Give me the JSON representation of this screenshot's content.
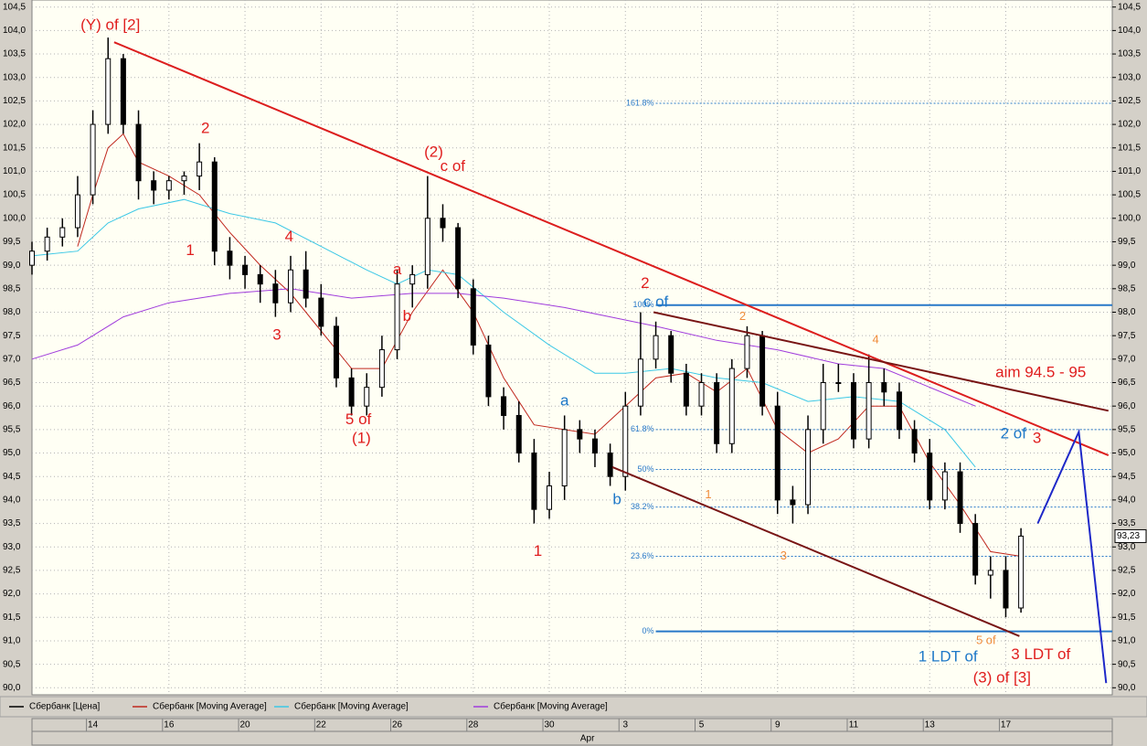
{
  "chart_data": {
    "type": "candlestick",
    "xlim": [
      0,
      142
    ],
    "ylim": [
      89.85,
      104.65
    ],
    "grid": true,
    "yticks": [
      {
        "value": 90,
        "label": "90,0"
      },
      {
        "value": 90.5,
        "label": "90,5"
      },
      {
        "value": 91,
        "label": "91,0"
      },
      {
        "value": 91.5,
        "label": "91,5"
      },
      {
        "value": 92,
        "label": "92,0"
      },
      {
        "value": 92.5,
        "label": "92,5"
      },
      {
        "value": 93,
        "label": "93,0"
      },
      {
        "value": 93.5,
        "label": "93,5"
      },
      {
        "value": 94,
        "label": "94,0"
      },
      {
        "value": 94.5,
        "label": "94,5"
      },
      {
        "value": 95,
        "label": "95,0"
      },
      {
        "value": 95.5,
        "label": "95,5"
      },
      {
        "value": 96,
        "label": "96,0"
      },
      {
        "value": 96.5,
        "label": "96,5"
      },
      {
        "value": 97,
        "label": "97,0"
      },
      {
        "value": 97.5,
        "label": "97,5"
      },
      {
        "value": 98,
        "label": "98,0"
      },
      {
        "value": 98.5,
        "label": "98,5"
      },
      {
        "value": 99,
        "label": "99,0"
      },
      {
        "value": 99.5,
        "label": "99,5"
      },
      {
        "value": 100,
        "label": "100,0"
      },
      {
        "value": 100.5,
        "label": "100,5"
      },
      {
        "value": 101,
        "label": "101,0"
      },
      {
        "value": 101.5,
        "label": "101,5"
      },
      {
        "value": 102,
        "label": "102,0"
      },
      {
        "value": 102.5,
        "label": "102,5"
      },
      {
        "value": 103,
        "label": "103,0"
      },
      {
        "value": 103.5,
        "label": "103,5"
      },
      {
        "value": 104,
        "label": "104,0"
      },
      {
        "value": 104.5,
        "label": "104,5"
      }
    ],
    "xticks": [
      {
        "value": 8,
        "label": "14"
      },
      {
        "value": 18,
        "label": "16"
      },
      {
        "value": 28,
        "label": "20"
      },
      {
        "value": 38,
        "label": "22"
      },
      {
        "value": 48,
        "label": "26"
      },
      {
        "value": 58,
        "label": "28"
      },
      {
        "value": 68,
        "label": "30"
      },
      {
        "value": 78,
        "label": "3"
      },
      {
        "value": 88,
        "label": "5"
      },
      {
        "value": 98,
        "label": "9"
      },
      {
        "value": 108,
        "label": "11"
      },
      {
        "value": 118,
        "label": "13"
      },
      {
        "value": 128,
        "label": "17"
      }
    ],
    "month_label": {
      "value": 73,
      "label": "Apr"
    },
    "last_price": {
      "value": 93.23,
      "label": "93,23"
    },
    "price": {
      "name": "Сбербанк [Цена]",
      "color": "#000000",
      "x": [
        0,
        2,
        4,
        6,
        8,
        10,
        12,
        14,
        16,
        18,
        20,
        22,
        24,
        26,
        28,
        30,
        32,
        34,
        36,
        38,
        40,
        42,
        44,
        46,
        48,
        50,
        52,
        54,
        56,
        58,
        60,
        62,
        64,
        66,
        68,
        70,
        72,
        74,
        76,
        78,
        80,
        82,
        84,
        86,
        88,
        90,
        92,
        94,
        96,
        98,
        100,
        102,
        104,
        106,
        108,
        110,
        112,
        114,
        116,
        118,
        120,
        122,
        124,
        126,
        128,
        130
      ],
      "open": [
        99.0,
        99.3,
        99.6,
        99.8,
        100.5,
        102.0,
        103.4,
        102.0,
        100.8,
        100.6,
        100.8,
        100.9,
        101.2,
        99.3,
        99.0,
        98.8,
        98.6,
        98.2,
        98.9,
        98.3,
        97.7,
        96.6,
        96.0,
        96.4,
        97.2,
        98.6,
        98.8,
        100.0,
        99.8,
        98.5,
        97.3,
        96.2,
        95.8,
        95.0,
        93.8,
        94.3,
        95.5,
        95.3,
        95.0,
        94.5,
        96.0,
        97.0,
        97.5,
        96.7,
        96.0,
        96.5,
        95.2,
        96.8,
        97.5,
        96.0,
        94.0,
        93.9,
        95.5,
        96.5,
        96.5,
        95.3,
        96.5,
        96.3,
        95.5,
        95.0,
        94.0,
        94.6,
        93.5,
        92.4,
        92.5,
        91.7
      ],
      "high": [
        99.5,
        99.8,
        100.0,
        100.9,
        102.3,
        103.85,
        103.5,
        102.3,
        101.0,
        100.9,
        101.0,
        101.6,
        101.3,
        99.6,
        99.2,
        99.0,
        98.9,
        99.2,
        99.3,
        98.6,
        97.9,
        96.8,
        96.7,
        97.5,
        98.9,
        99.0,
        100.9,
        100.3,
        99.9,
        98.7,
        97.5,
        96.4,
        96.1,
        95.3,
        94.6,
        95.8,
        95.7,
        95.5,
        95.2,
        96.3,
        98.0,
        97.8,
        97.6,
        96.9,
        96.7,
        96.7,
        97.0,
        97.7,
        97.6,
        96.3,
        94.3,
        95.8,
        96.9,
        96.9,
        96.7,
        97.1,
        96.8,
        96.5,
        95.7,
        95.3,
        94.8,
        94.8,
        93.7,
        92.8,
        92.8,
        93.4
      ],
      "low": [
        98.8,
        99.1,
        99.4,
        99.6,
        100.3,
        101.8,
        101.8,
        100.4,
        100.3,
        100.4,
        100.5,
        100.6,
        99.0,
        98.7,
        98.5,
        98.2,
        97.9,
        98.0,
        98.1,
        97.5,
        96.4,
        95.8,
        95.8,
        96.2,
        97.0,
        98.1,
        98.5,
        99.5,
        98.3,
        97.1,
        96.0,
        95.5,
        94.8,
        93.5,
        93.6,
        94.0,
        95.0,
        94.7,
        94.3,
        94.2,
        95.8,
        96.8,
        96.5,
        95.8,
        95.8,
        95.0,
        95.0,
        96.6,
        95.8,
        93.7,
        93.5,
        93.7,
        95.2,
        96.3,
        95.1,
        95.1,
        96.0,
        95.3,
        94.8,
        93.8,
        93.8,
        93.3,
        92.2,
        91.9,
        91.5,
        91.6
      ],
      "close": [
        99.3,
        99.6,
        99.8,
        100.5,
        102.0,
        103.4,
        102.0,
        100.8,
        100.6,
        100.8,
        100.9,
        101.2,
        99.3,
        99.0,
        98.8,
        98.6,
        98.2,
        98.9,
        98.3,
        97.7,
        96.6,
        96.0,
        96.4,
        97.2,
        98.6,
        98.8,
        100.0,
        99.8,
        98.5,
        97.3,
        96.2,
        95.8,
        95.0,
        93.8,
        94.3,
        95.5,
        95.3,
        95.0,
        94.5,
        96.0,
        97.0,
        97.5,
        96.7,
        96.0,
        96.5,
        95.2,
        96.8,
        97.5,
        96.0,
        94.0,
        93.9,
        95.5,
        96.5,
        96.5,
        95.3,
        96.5,
        96.3,
        95.5,
        95.0,
        94.0,
        94.6,
        93.5,
        92.4,
        92.5,
        91.7,
        93.23
      ]
    },
    "series": [
      {
        "name": "Сбербанк [Moving Average]",
        "color": "#c0281e",
        "x": [
          6,
          8,
          10,
          12,
          14,
          18,
          22,
          26,
          30,
          34,
          38,
          42,
          46,
          50,
          54,
          58,
          62,
          66,
          70,
          74,
          78,
          82,
          86,
          90,
          94,
          98,
          102,
          106,
          110,
          114,
          118,
          122,
          126,
          130
        ],
        "values": [
          99.4,
          100.5,
          101.5,
          101.8,
          101.2,
          100.9,
          100.5,
          99.7,
          99.0,
          98.4,
          97.6,
          96.8,
          96.8,
          98.0,
          98.9,
          98.0,
          96.6,
          95.6,
          95.5,
          95.4,
          96.0,
          96.6,
          96.7,
          96.3,
          96.8,
          95.5,
          95.0,
          95.3,
          96.0,
          96.0,
          94.8,
          93.9,
          92.9,
          92.8
        ]
      },
      {
        "name": "Сбербанк [Moving Average]",
        "color": "#3cc8e6",
        "x": [
          0,
          6,
          10,
          14,
          20,
          26,
          32,
          38,
          44,
          48,
          52,
          56,
          62,
          68,
          74,
          78,
          84,
          90,
          96,
          102,
          108,
          114,
          120,
          124
        ],
        "values": [
          99.2,
          99.3,
          99.9,
          100.2,
          100.4,
          100.1,
          99.9,
          99.4,
          98.9,
          98.6,
          98.9,
          98.8,
          98.0,
          97.3,
          96.7,
          96.7,
          96.8,
          96.6,
          96.5,
          96.1,
          96.2,
          96.1,
          95.5,
          94.7
        ]
      },
      {
        "name": "Сбербанк [Moving Average]",
        "color": "#a03cdc",
        "x": [
          0,
          6,
          12,
          18,
          26,
          34,
          42,
          50,
          56,
          62,
          70,
          76,
          82,
          90,
          98,
          106,
          112,
          118,
          124
        ],
        "values": [
          97.0,
          97.3,
          97.9,
          98.2,
          98.4,
          98.5,
          98.3,
          98.4,
          98.4,
          98.3,
          98.1,
          97.9,
          97.7,
          97.4,
          97.2,
          96.9,
          96.8,
          96.4,
          96.0
        ]
      }
    ],
    "trendlines": [
      {
        "color": "#dc1e1e",
        "x": [
          10.8,
          141.5
        ],
        "y": [
          103.75,
          94.95
        ]
      },
      {
        "color": "#781414",
        "x": [
          81.7,
          141.5
        ],
        "y": [
          98.0,
          95.9
        ]
      },
      {
        "color": "#781414",
        "x": [
          76.3,
          129.8
        ],
        "y": [
          94.7,
          91.1
        ]
      },
      {
        "color": "#1e28c8",
        "x": [
          132.2,
          137.6,
          141.2
        ],
        "y": [
          93.5,
          95.45,
          90.1
        ]
      }
    ],
    "fib_x": [
      82,
      142
    ],
    "fib_color": "#2878c8",
    "fib_levels": [
      {
        "label": "161.8%",
        "value": 102.45,
        "style": "dashed"
      },
      {
        "label": "100%",
        "value": 98.15,
        "style": "solid"
      },
      {
        "label": "61.8%",
        "value": 95.5,
        "style": "dashed"
      },
      {
        "label": "50%",
        "value": 94.65,
        "style": "dashed"
      },
      {
        "label": "38.2%",
        "value": 93.85,
        "style": "dashed"
      },
      {
        "label": "23.6%",
        "value": 92.8,
        "style": "dashed"
      },
      {
        "label": "0%",
        "value": 91.2,
        "style": "solid"
      }
    ],
    "annotations": [
      {
        "text": "(Y) of [2]",
        "x": 10.3,
        "y": 104.1,
        "color": "#e01e1e"
      },
      {
        "text": "2",
        "x": 22.8,
        "y": 101.9,
        "color": "#e01e1e"
      },
      {
        "text": "1",
        "x": 20.8,
        "y": 99.3,
        "color": "#e01e1e"
      },
      {
        "text": "4",
        "x": 33.8,
        "y": 99.6,
        "color": "#e01e1e"
      },
      {
        "text": "3",
        "x": 32.2,
        "y": 97.5,
        "color": "#e01e1e"
      },
      {
        "text": "5 of",
        "x": 42.9,
        "y": 95.7,
        "color": "#e01e1e"
      },
      {
        "text": "(1)",
        "x": 43.3,
        "y": 95.3,
        "color": "#e01e1e"
      },
      {
        "text": "(2)",
        "x": 52.8,
        "y": 101.4,
        "color": "#e01e1e"
      },
      {
        "text": "c of",
        "x": 55.3,
        "y": 101.1,
        "color": "#e01e1e"
      },
      {
        "text": "a",
        "x": 48,
        "y": 98.9,
        "color": "#e01e1e"
      },
      {
        "text": "b",
        "x": 49.3,
        "y": 97.9,
        "color": "#e01e1e"
      },
      {
        "text": "2",
        "x": 80.6,
        "y": 98.6,
        "color": "#e01e1e"
      },
      {
        "text": "c of",
        "x": 82,
        "y": 98.2,
        "color": "#1e78c8"
      },
      {
        "text": "a",
        "x": 70,
        "y": 96.1,
        "color": "#1e78c8"
      },
      {
        "text": "b",
        "x": 76.9,
        "y": 94.0,
        "color": "#1e78c8"
      },
      {
        "text": "1",
        "x": 66.5,
        "y": 92.9,
        "color": "#e01e1e"
      },
      {
        "text": "2",
        "x": 93.4,
        "y": 97.9,
        "color": "#f08c3c"
      },
      {
        "text": "1",
        "x": 88.9,
        "y": 94.1,
        "color": "#f08c3c"
      },
      {
        "text": "3",
        "x": 98.8,
        "y": 92.8,
        "color": "#f08c3c"
      },
      {
        "text": "4",
        "x": 110.9,
        "y": 97.4,
        "color": "#f08c3c"
      },
      {
        "text": "5 of",
        "x": 125.4,
        "y": 91.0,
        "color": "#f08c3c"
      },
      {
        "text": "aim 94.5 - 95",
        "x": 132.6,
        "y": 96.7,
        "color": "#e01e1e"
      },
      {
        "text": "2 of",
        "x": 129,
        "y": 95.4,
        "color": "#1e78c8"
      },
      {
        "text": "3",
        "x": 132.1,
        "y": 95.3,
        "color": "#e01e1e"
      },
      {
        "text": "1 LDT of",
        "x": 120.4,
        "y": 90.65,
        "color": "#1e78c8"
      },
      {
        "text": "3 LDT of",
        "x": 132.6,
        "y": 90.7,
        "color": "#e01e1e"
      },
      {
        "text": "(3) of [3]",
        "x": 127.5,
        "y": 90.2,
        "color": "#e01e1e"
      }
    ]
  }
}
